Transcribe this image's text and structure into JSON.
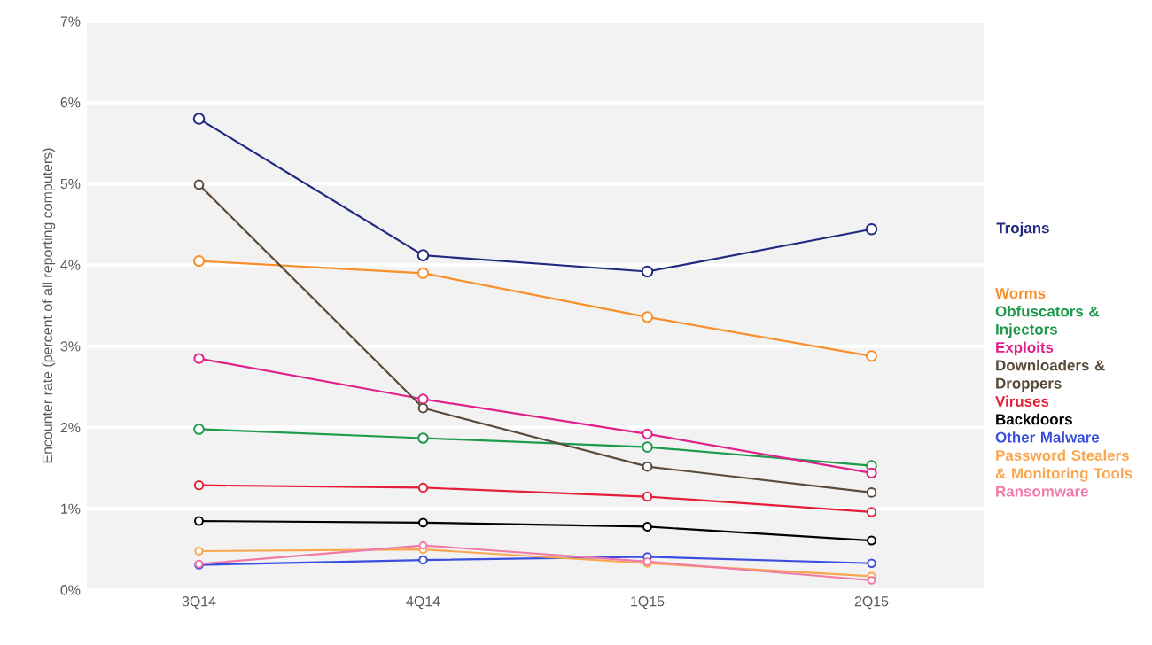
{
  "chart_data": {
    "type": "line",
    "ylabel": "Encounter rate (percent of all reporting computers)",
    "categories": [
      "3Q14",
      "4Q14",
      "1Q15",
      "2Q15"
    ],
    "ylim": [
      0,
      7
    ],
    "yticks": [
      {
        "value": 0,
        "label": "0%"
      },
      {
        "value": 1,
        "label": "1%"
      },
      {
        "value": 2,
        "label": "2%"
      },
      {
        "value": 3,
        "label": "3%"
      },
      {
        "value": 4,
        "label": "4%"
      },
      {
        "value": 5,
        "label": "5%"
      },
      {
        "value": 6,
        "label": "6%"
      },
      {
        "value": 7,
        "label": "7%"
      }
    ],
    "grid": "y",
    "legend": false,
    "marker": "circle",
    "line_style": "solid",
    "series": [
      {
        "name": "Trojans",
        "color": "#1f2a80",
        "values": [
          5.8,
          4.12,
          3.92,
          4.44
        ]
      },
      {
        "name": "Worms",
        "color": "#f7902b",
        "values": [
          4.05,
          3.9,
          3.36,
          2.88
        ]
      },
      {
        "name": "Obfuscators & Injectors",
        "color": "#1e9a4b",
        "values": [
          1.98,
          1.87,
          1.76,
          1.53
        ]
      },
      {
        "name": "Exploits",
        "color": "#e0218a",
        "values": [
          2.85,
          2.35,
          1.92,
          1.44
        ]
      },
      {
        "name": "Downloaders & Droppers",
        "color": "#5a4a3a",
        "values": [
          4.99,
          2.24,
          1.52,
          1.2
        ]
      },
      {
        "name": "Viruses",
        "color": "#e31e36",
        "values": [
          1.29,
          1.26,
          1.15,
          0.96
        ]
      },
      {
        "name": "Backdoors",
        "color": "#000000",
        "values": [
          0.85,
          0.83,
          0.78,
          0.61
        ]
      },
      {
        "name": "Other Malware",
        "color": "#3a4fe0",
        "values": [
          0.31,
          0.37,
          0.41,
          0.33
        ]
      },
      {
        "name": "Password Stealers & Monitoring Tools",
        "color": "#fba64e",
        "values": [
          0.48,
          0.5,
          0.33,
          0.17
        ]
      },
      {
        "name": "Ransomware",
        "color": "#f07aa8",
        "values": [
          0.32,
          0.55,
          0.35,
          0.12
        ]
      }
    ]
  }
}
